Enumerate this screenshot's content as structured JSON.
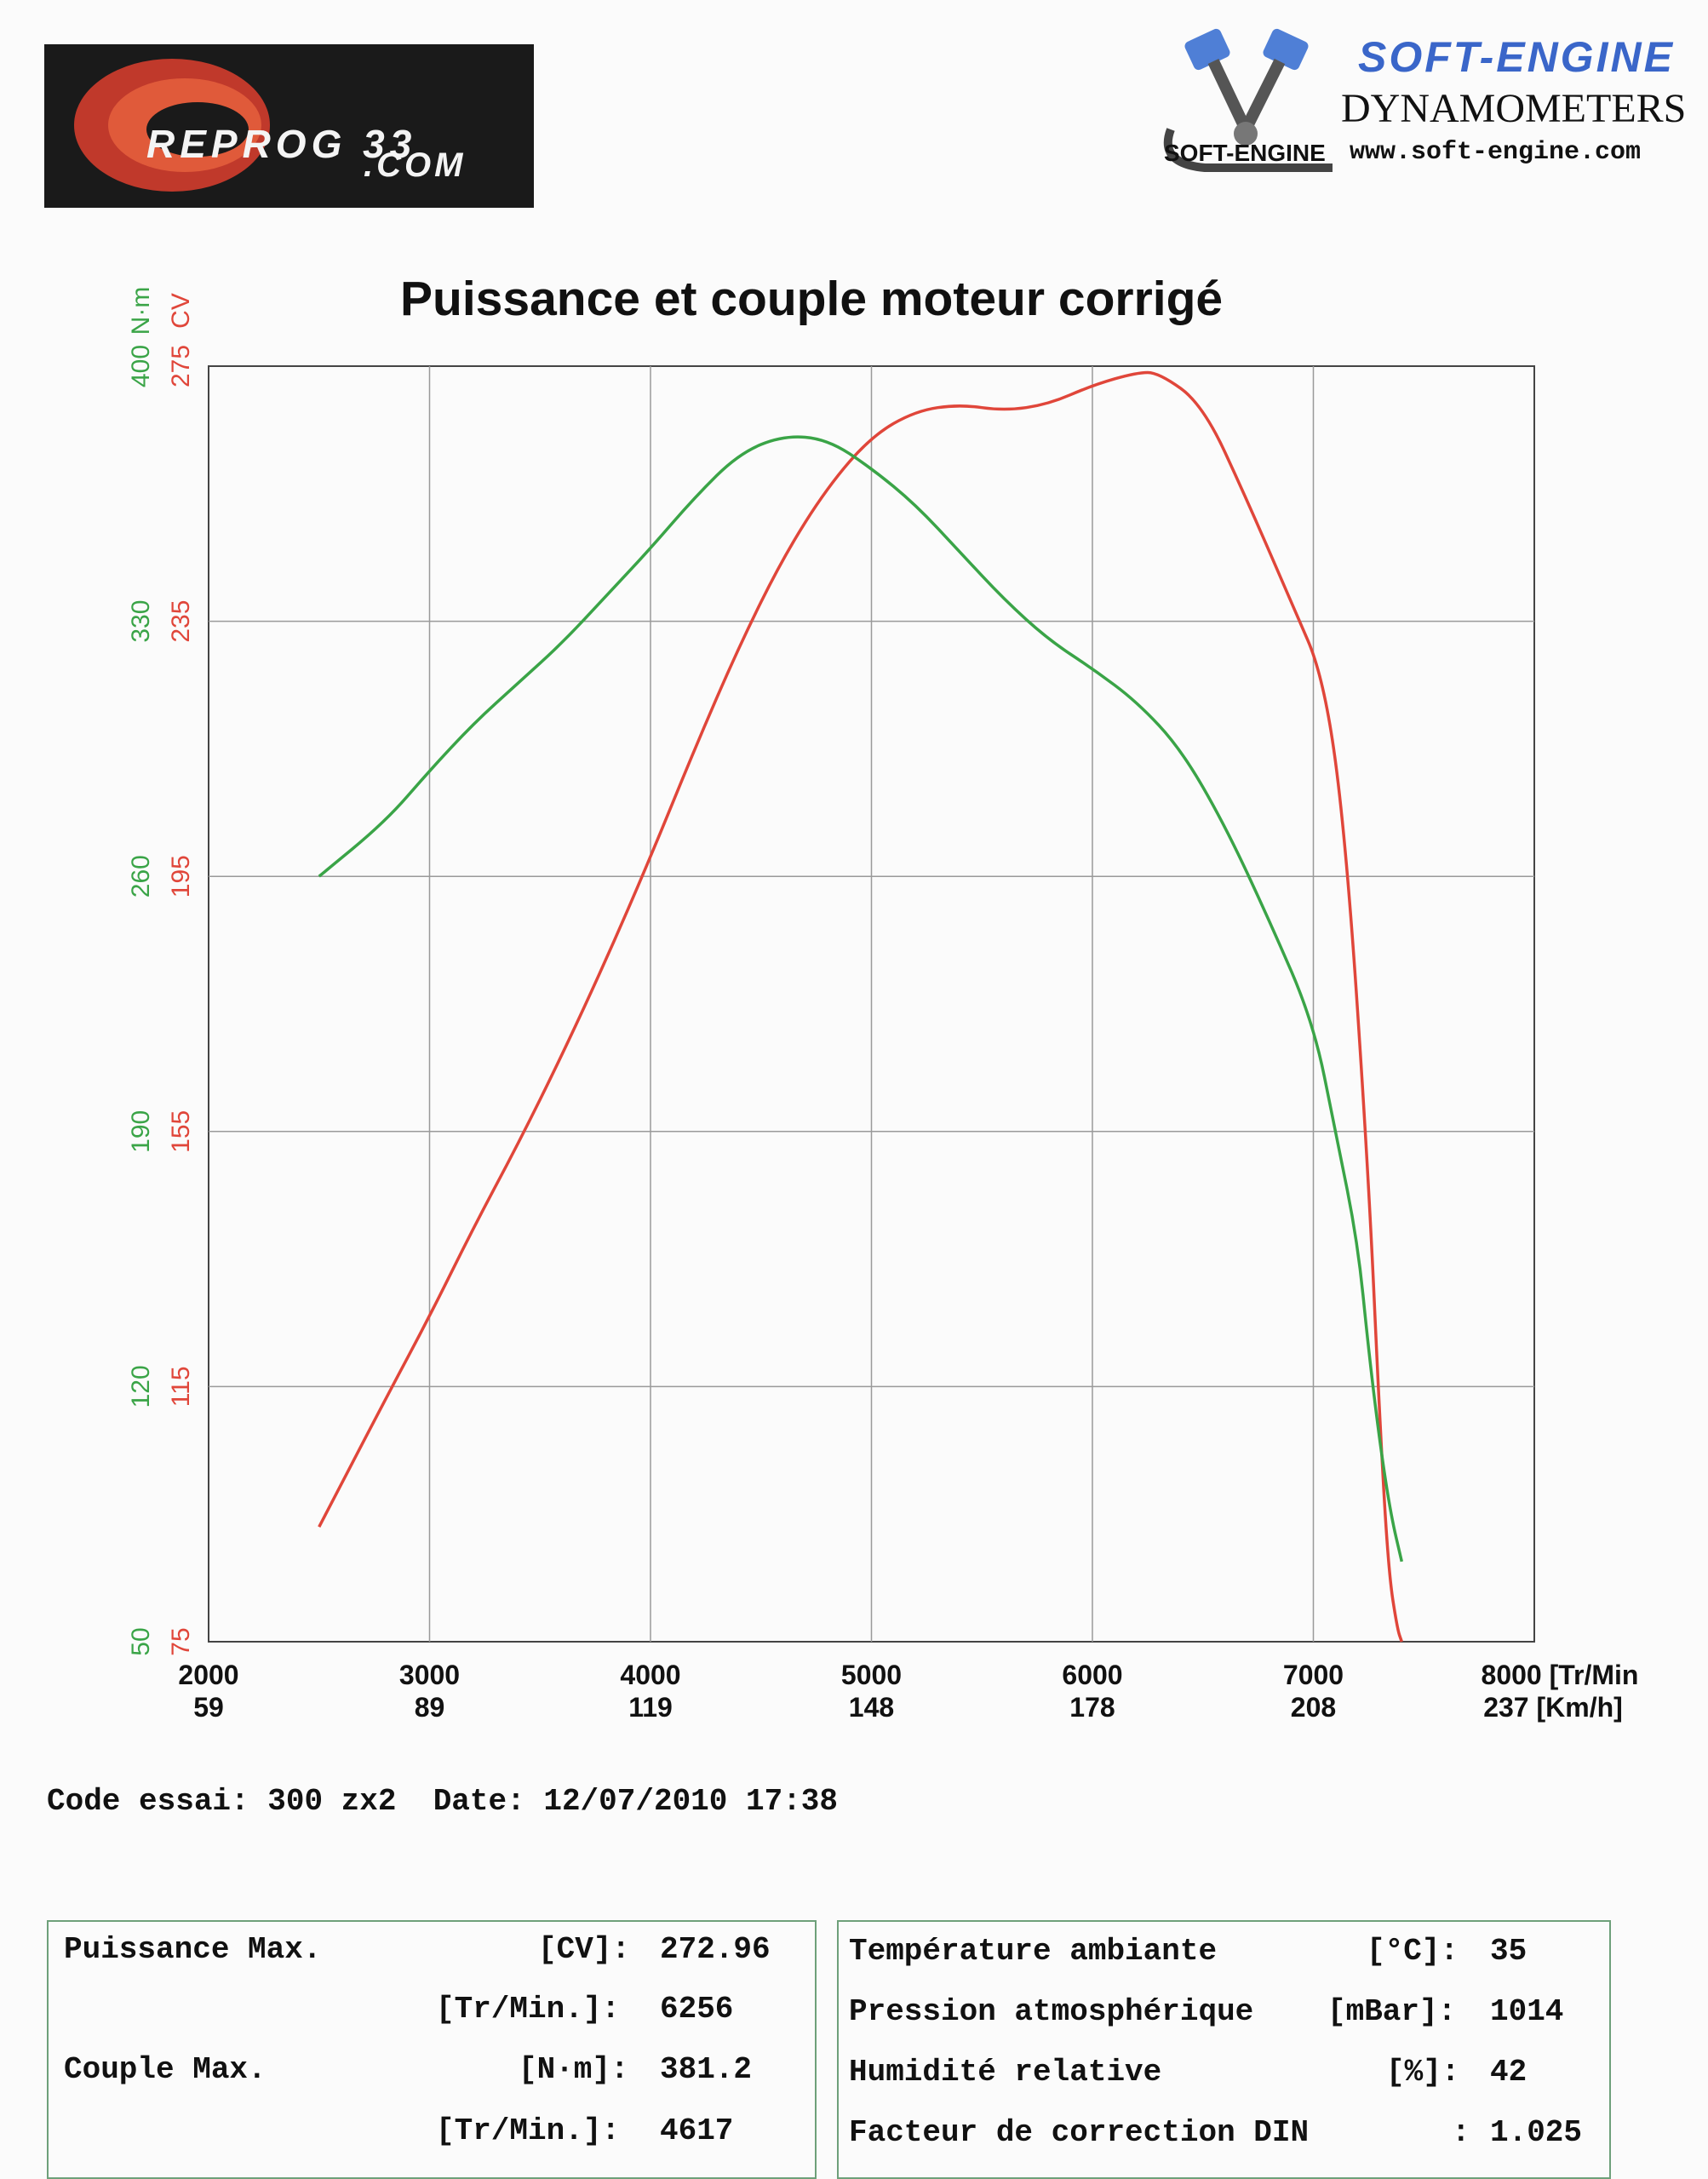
{
  "logos": {
    "left_brand": "REPROG 33",
    "left_sub": ".COM",
    "right_brand": "SOFT-ENGINE",
    "right_line": "DYNAMOMETERS",
    "right_url": "www.soft-engine.com",
    "right_mini": "SOFT-ENGINE"
  },
  "chart_data": {
    "type": "line",
    "title": "Puissance et couple moteur corrigé",
    "xlabel": "[Tr/Min",
    "xlabel2": "[Km/h]",
    "x_ticks": [
      2000,
      3000,
      4000,
      5000,
      6000,
      7000,
      8000
    ],
    "x_ticks_kmh": [
      59,
      89,
      119,
      148,
      178,
      208,
      237
    ],
    "xlim": [
      2000,
      8000
    ],
    "y_left_green_label": "N·m",
    "y_left_red_label": "CV",
    "y_green_ticks": [
      50,
      120,
      190,
      260,
      330,
      400
    ],
    "y_red_ticks": [
      75,
      115,
      155,
      195,
      235,
      275
    ],
    "ylim_green": [
      50,
      400
    ],
    "ylim_red": [
      75,
      275
    ],
    "grid": true,
    "series": [
      {
        "name": "CV",
        "color": "#e0463a",
        "x": [
          2500,
          2800,
          3000,
          3200,
          3400,
          3600,
          3800,
          4000,
          4200,
          4400,
          4600,
          4800,
          5000,
          5200,
          5400,
          5600,
          5800,
          6000,
          6200,
          6300,
          6500,
          6700,
          6900,
          7050,
          7150,
          7250,
          7300,
          7340,
          7380,
          7400
        ],
        "y": [
          93,
          113,
          126,
          140,
          153,
          167,
          182,
          198,
          215,
          231,
          245,
          256,
          264,
          268,
          269,
          268,
          269,
          272,
          274,
          274,
          269,
          254,
          238,
          226,
          200,
          148,
          110,
          86,
          77,
          75
        ]
      },
      {
        "name": "N·m",
        "color": "#3aa447",
        "x": [
          2500,
          2800,
          3000,
          3200,
          3400,
          3600,
          3800,
          4000,
          4200,
          4400,
          4600,
          4800,
          5000,
          5200,
          5400,
          5600,
          5800,
          6000,
          6200,
          6400,
          6600,
          6800,
          7000,
          7100,
          7200,
          7250,
          7300,
          7350,
          7400
        ],
        "y": [
          260,
          275,
          289,
          302,
          313,
          324,
          337,
          350,
          364,
          376,
          381,
          380,
          372,
          362,
          349,
          336,
          325,
          317,
          308,
          295,
          274,
          248,
          220,
          190,
          160,
          130,
          105,
          85,
          72
        ]
      }
    ]
  },
  "test_info": {
    "code_label": "Code essai:",
    "code_value": "300 zx2",
    "date_label": "Date:",
    "date_value": "12/07/2010 17:38"
  },
  "results_left": [
    {
      "label": "Puissance Max.",
      "unit": "[CV]:",
      "value": "272.96"
    },
    {
      "label": "",
      "unit": "[Tr/Min.]:",
      "value": "6256"
    },
    {
      "label": "Couple Max.",
      "unit": "[N·m]:",
      "value": "381.2"
    },
    {
      "label": "",
      "unit": "[Tr/Min.]:",
      "value": "4617"
    }
  ],
  "results_right": [
    {
      "label": "Température ambiante",
      "unit": "[°C]:",
      "value": "35"
    },
    {
      "label": "Pression atmosphérique",
      "unit": "[mBar]:",
      "value": "1014"
    },
    {
      "label": "Humidité relative",
      "unit": "[%]:",
      "value": "42"
    },
    {
      "label": "Facteur de correction DIN",
      "unit": ":",
      "value": "1.025"
    }
  ]
}
